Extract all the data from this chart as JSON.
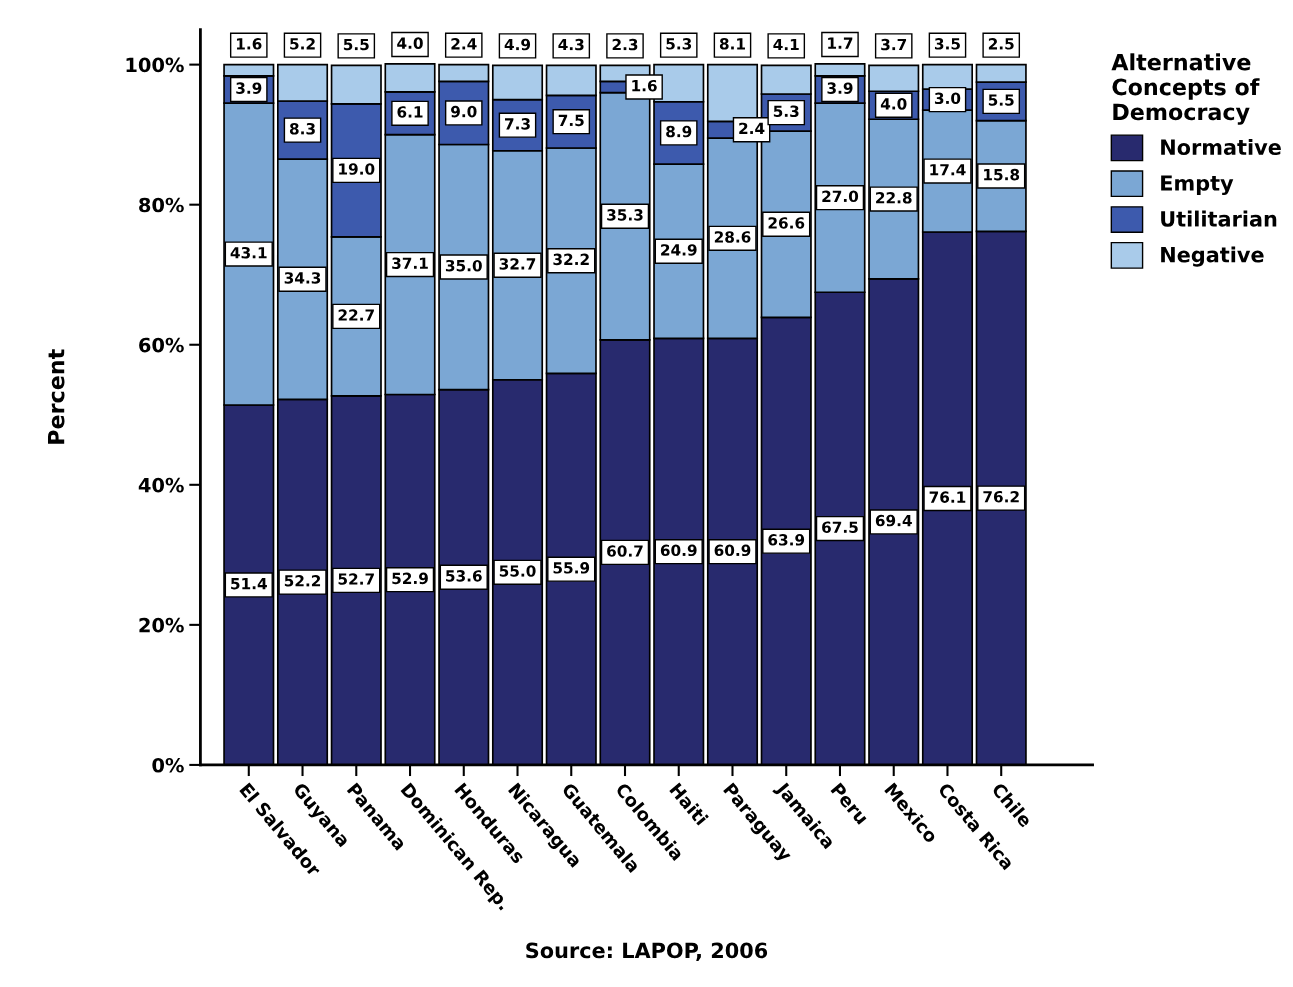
{
  "chart_data": {
    "type": "bar",
    "stacked": true,
    "ylabel": "Percent",
    "legend_title": "Alternative Concepts of Democracy",
    "legend": "right",
    "categories": [
      "El Salvador",
      "Guyana",
      "Panama",
      "Dominican Rep.",
      "Honduras",
      "Nicaragua",
      "Guatemala",
      "Colombia",
      "Haiti",
      "Paraguay",
      "Jamaica",
      "Peru",
      "Mexico",
      "Costa Rica",
      "Chile"
    ],
    "series": [
      {
        "name": "Normative",
        "color": "#282a6e",
        "values": [
          51.4,
          52.2,
          52.7,
          52.9,
          53.6,
          55.0,
          55.9,
          60.7,
          60.9,
          60.9,
          63.9,
          67.5,
          69.4,
          76.1,
          76.2
        ],
        "value_labels": [
          "51.4",
          "52.2",
          "52.7",
          "52.9",
          "53.6",
          "55.0",
          "55.9",
          "60.7",
          "60.9",
          "60.9",
          "63.9",
          "67.5",
          "69.4",
          "76.1",
          "76.2"
        ]
      },
      {
        "name": "Empty",
        "color": "#7ba7d4",
        "values": [
          43.1,
          34.3,
          22.7,
          37.1,
          35.0,
          32.7,
          32.2,
          35.3,
          24.9,
          28.6,
          26.6,
          27.0,
          22.8,
          17.4,
          15.8
        ],
        "value_labels": [
          "43.1",
          "34.3",
          "22.7",
          "37.1",
          "35.0",
          "32.7",
          "32.2",
          "35.3",
          "24.9",
          "28.6",
          "26.6",
          "27.0",
          "22.8",
          "17.4",
          "15.8"
        ]
      },
      {
        "name": "Utilitarian",
        "color": "#3d5aad",
        "values": [
          3.9,
          8.3,
          19.0,
          6.1,
          9.0,
          7.3,
          7.5,
          1.6,
          8.9,
          2.4,
          5.3,
          3.9,
          4.0,
          3.0,
          5.5
        ],
        "value_labels": [
          "3.9",
          "8.3",
          "19.0",
          "6.1",
          "9.0",
          "7.3",
          "7.5",
          "1.6",
          "8.9",
          "2.4",
          "5.3",
          "3.9",
          "4.0",
          "3.0",
          "5.5"
        ]
      },
      {
        "name": "Negative",
        "color": "#a9cbea",
        "values": [
          1.6,
          5.2,
          5.5,
          4.0,
          2.4,
          4.9,
          4.3,
          2.3,
          5.3,
          8.1,
          4.1,
          1.7,
          3.7,
          3.5,
          2.5
        ],
        "value_labels": [
          "1.6",
          "5.2",
          "5.5",
          "4.0",
          "2.4",
          "4.9",
          "4.3",
          "2.3",
          "5.3",
          "8.1",
          "4.1",
          "1.7",
          "3.7",
          "3.5",
          "2.5"
        ]
      }
    ],
    "ylim": [
      0,
      105
    ],
    "yticks": [
      {
        "value": 0,
        "label": "0%"
      },
      {
        "value": 20,
        "label": "20%"
      },
      {
        "value": 40,
        "label": "40%"
      },
      {
        "value": 60,
        "label": "60%"
      },
      {
        "value": 80,
        "label": "80%"
      },
      {
        "value": 100,
        "label": "100%"
      }
    ],
    "grid": false,
    "annotations": [
      "Source: LAPOP, 2006"
    ]
  }
}
